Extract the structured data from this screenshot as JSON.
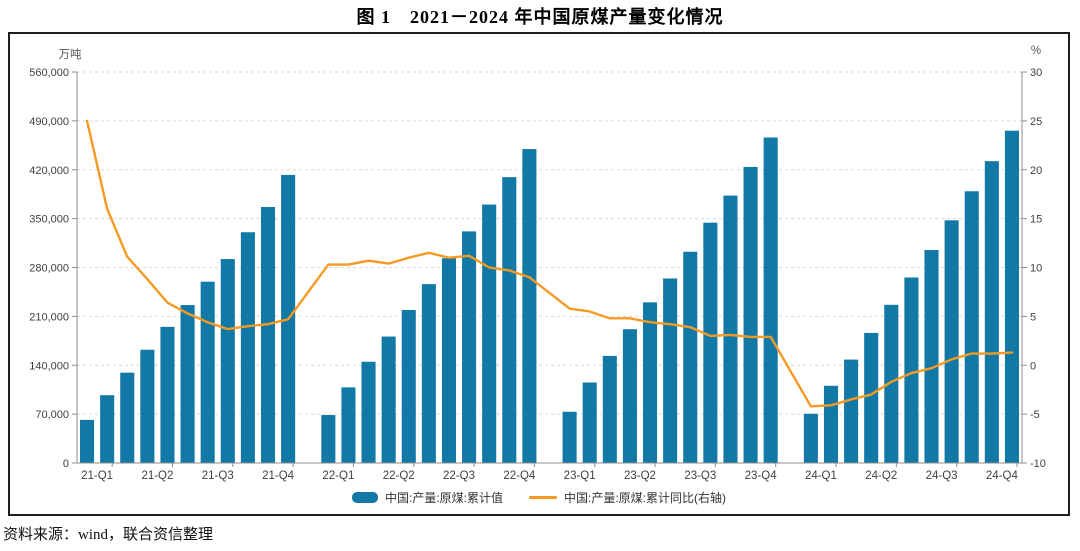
{
  "title": "图 1　2021－2024 年中国原煤产量变化情况",
  "source_note": "资料来源：wind，联合资信整理",
  "chart_data": {
    "type": "bar",
    "subtype": "bar-line-combo",
    "grid": "dashed horizontal gridlines on",
    "legend_position": "bottom-center",
    "left_axis": {
      "unit": "万吨",
      "min": 0,
      "max": 560000,
      "step": 70000,
      "tick_labels": [
        "0",
        "70,000",
        "140,000",
        "210,000",
        "280,000",
        "350,000",
        "420,000",
        "490,000",
        "560,000"
      ]
    },
    "right_axis": {
      "unit": "%",
      "min": -10,
      "max": 30,
      "step": 5,
      "tick_labels": [
        "-10",
        "-5",
        "0",
        "5",
        "10",
        "15",
        "20",
        "25",
        "30"
      ]
    },
    "x_tick_labels": [
      "21-Q1",
      "21-Q2",
      "21-Q3",
      "21-Q4",
      "22-Q1",
      "22-Q2",
      "22-Q3",
      "22-Q4",
      "23-Q1",
      "23-Q2",
      "23-Q3",
      "23-Q4",
      "24-Q1",
      "24-Q2",
      "24-Q3",
      "24-Q4"
    ],
    "slots": 47,
    "gap_slots": [
      11,
      23,
      35
    ],
    "series": [
      {
        "name": "中国:产量:原煤:累计值",
        "type": "bar",
        "axis": "left",
        "color": "#1278A5",
        "values": [
          61800,
          97100,
          129400,
          162200,
          195000,
          226200,
          259700,
          292100,
          330500,
          366600,
          412600,
          null,
          68700,
          108300,
          145000,
          181100,
          219200,
          256200,
          293300,
          331700,
          370100,
          409400,
          449600,
          null,
          73400,
          115300,
          153400,
          191600,
          230100,
          264300,
          302600,
          344200,
          383000,
          424000,
          466200,
          null,
          70500,
          110600,
          148100,
          186300,
          226600,
          265700,
          305000,
          347600,
          389200,
          432300,
          475900
        ]
      },
      {
        "name": "中国:产量:原煤:累计同比(右轴)",
        "type": "line",
        "axis": "right",
        "color": "#F59A23",
        "values": [
          25.0,
          16.0,
          11.1,
          8.8,
          6.4,
          5.3,
          4.4,
          3.7,
          4.0,
          4.2,
          4.7,
          null,
          10.3,
          10.3,
          10.7,
          10.4,
          11.0,
          11.5,
          11.0,
          11.2,
          10.0,
          9.7,
          9.0,
          null,
          5.8,
          5.5,
          4.8,
          4.8,
          4.4,
          4.2,
          3.9,
          3.0,
          3.1,
          2.9,
          2.9,
          null,
          -4.2,
          -4.1,
          -3.5,
          -3.0,
          -1.7,
          -0.8,
          -0.3,
          0.6,
          1.2,
          1.2,
          1.3
        ]
      }
    ],
    "style": {
      "grid_color": "#d9d9d9",
      "axis_color": "#8c8c8c",
      "label_color": "#404040",
      "unit_color": "#595959"
    }
  }
}
